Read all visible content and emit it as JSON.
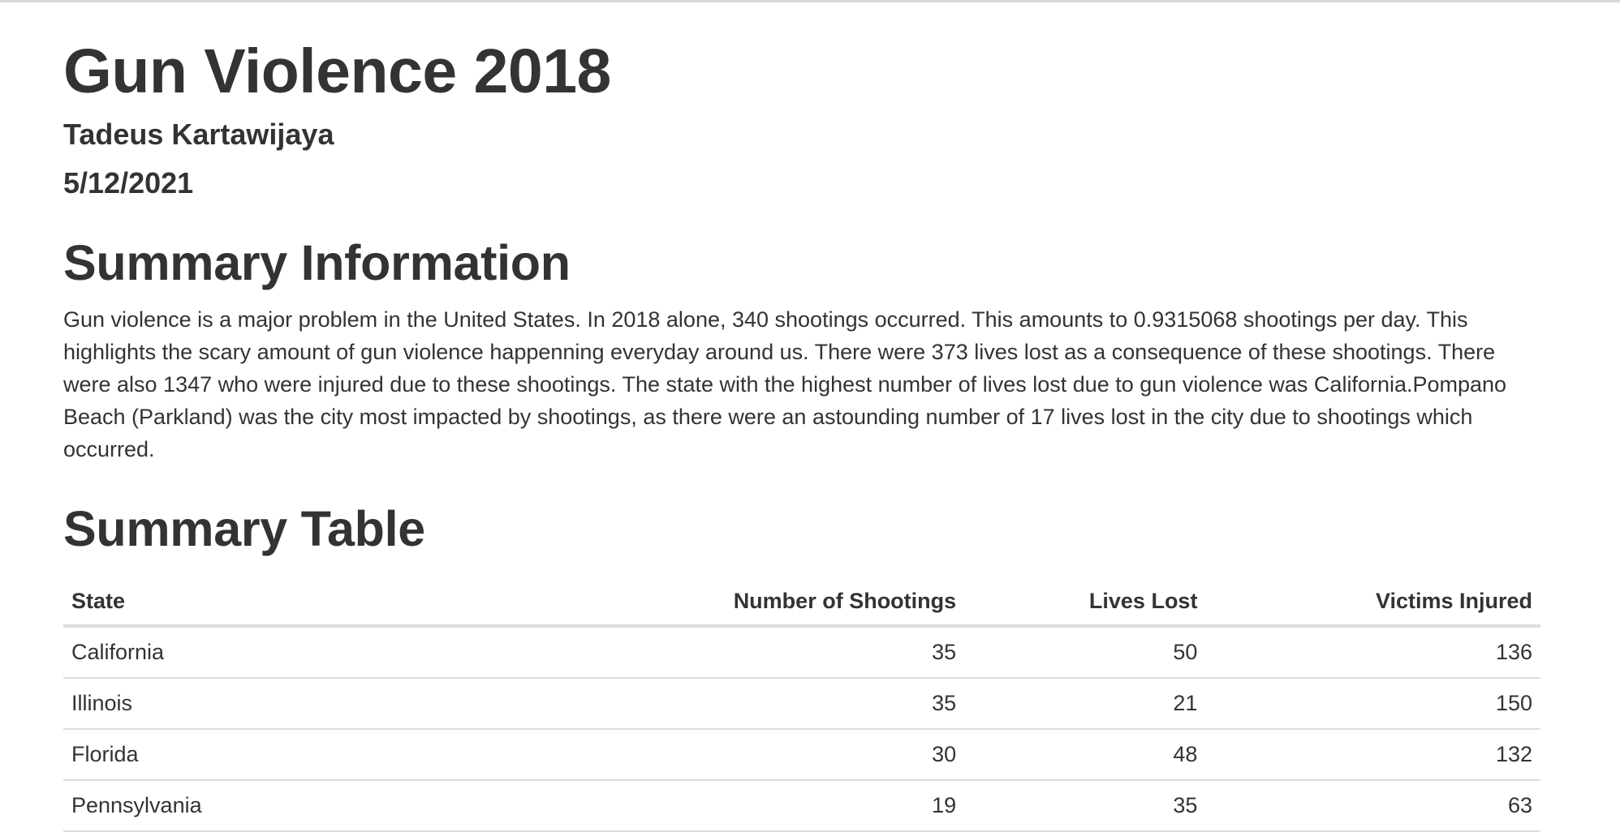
{
  "document": {
    "title": "Gun Violence 2018",
    "author": "Tadeus Kartawijaya",
    "date": "5/12/2021"
  },
  "summary": {
    "heading": "Summary Information",
    "text": "Gun violence is a major problem in the United States. In 2018 alone, 340 shootings occurred. This amounts to 0.9315068 shootings per day. This highlights the scary amount of gun violence happenning everyday around us. There were 373 lives lost as a consequence of these shootings. There were also 1347 who were injured due to these shootings. The state with the highest number of lives lost due to gun violence was California.Pompano Beach (Parkland) was the city most impacted by shootings, as there were an astounding number of 17 lives lost in the city due to shootings which occurred."
  },
  "table": {
    "heading": "Summary Table",
    "columns": [
      "State",
      "Number of Shootings",
      "Lives Lost",
      "Victims Injured"
    ],
    "rows": [
      [
        "California",
        "35",
        "50",
        "136"
      ],
      [
        "Illinois",
        "35",
        "21",
        "150"
      ],
      [
        "Florida",
        "30",
        "48",
        "132"
      ],
      [
        "Pennsylvania",
        "19",
        "35",
        "63"
      ]
    ]
  }
}
